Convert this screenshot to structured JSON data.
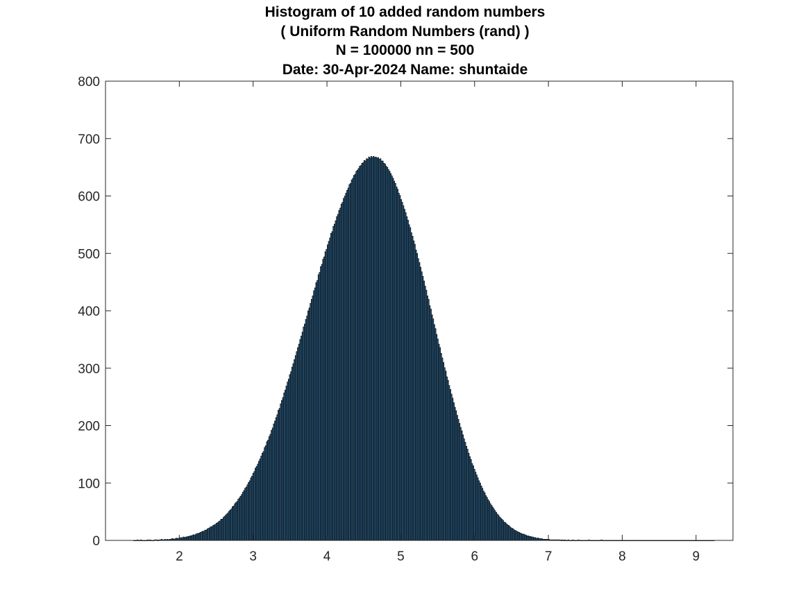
{
  "chart_data": {
    "type": "histogram",
    "title_lines": [
      "Histogram of 10 added random numbers",
      "( Uniform Random Numbers (rand) )",
      "N = 100000 nn = 500",
      "Date: 30-Apr-2024 Name: shuntaide"
    ],
    "xlabel": "",
    "ylabel": "",
    "xlim": [
      1.0,
      9.5
    ],
    "ylim": [
      0,
      800
    ],
    "x_ticks": [
      2,
      3,
      4,
      5,
      6,
      7,
      8,
      9
    ],
    "y_ticks": [
      0,
      100,
      200,
      300,
      400,
      500,
      600,
      700,
      800
    ],
    "grid": false,
    "legend": "none",
    "bar_fill_color": "#2d5c80",
    "bar_edge_color": "#000000",
    "box": true,
    "bins": {
      "count": 500,
      "x_start": 1.38,
      "x_end": 9.14,
      "bin_width": 0.01552,
      "description_of_shape": "approximately normal, mean 5, std 0.913"
    },
    "values": [
      0,
      0,
      0,
      1,
      0,
      0,
      1,
      0,
      0,
      0,
      0,
      0,
      1,
      0,
      1,
      0,
      0,
      0,
      1,
      1,
      1,
      0,
      1,
      1,
      2,
      1,
      1,
      2,
      1,
      2,
      1,
      2,
      2,
      3,
      3,
      2,
      3,
      4,
      3,
      4,
      4,
      5,
      4,
      6,
      5,
      6,
      6,
      7,
      7,
      8,
      8,
      9,
      10,
      9,
      11,
      12,
      12,
      13,
      14,
      15,
      16,
      16,
      18,
      18,
      20,
      21,
      22,
      24,
      24,
      26,
      27,
      28,
      30,
      31,
      33,
      34,
      37,
      37,
      40,
      42,
      44,
      46,
      48,
      51,
      53,
      55,
      59,
      60,
      64,
      66,
      68,
      72,
      74,
      77,
      80,
      84,
      87,
      91,
      93,
      97,
      101,
      104,
      109,
      112,
      117,
      120,
      126,
      129,
      133,
      138,
      142,
      147,
      152,
      155,
      162,
      165,
      172,
      175,
      181,
      185,
      192,
      196,
      203,
      208,
      214,
      219,
      227,
      230,
      238,
      244,
      249,
      257,
      262,
      269,
      276,
      281,
      289,
      294,
      302,
      308,
      315,
      322,
      329,
      336,
      342,
      350,
      356,
      363,
      372,
      377,
      385,
      391,
      400,
      405,
      413,
      420,
      426,
      435,
      440,
      449,
      453,
      463,
      467,
      477,
      481,
      490,
      494,
      503,
      507,
      515,
      521,
      527,
      535,
      538,
      547,
      551,
      557,
      564,
      568,
      575,
      579,
      586,
      589,
      596,
      600,
      605,
      610,
      614,
      620,
      622,
      628,
      631,
      636,
      638,
      643,
      645,
      648,
      652,
      653,
      657,
      658,
      662,
      661,
      665,
      664,
      668,
      666,
      669,
      667,
      669,
      667,
      668,
      666,
      667,
      664,
      665,
      661,
      661,
      657,
      656,
      652,
      650,
      646,
      643,
      639,
      635,
      631,
      626,
      622,
      616,
      612,
      605,
      601,
      594,
      589,
      583,
      577,
      571,
      564,
      558,
      550,
      545,
      536,
      530,
      522,
      516,
      506,
      500,
      491,
      484,
      476,
      468,
      460,
      452,
      443,
      436,
      426,
      420,
      409,
      403,
      393,
      386,
      376,
      369,
      359,
      351,
      342,
      336,
      326,
      318,
      310,
      301,
      295,
      285,
      279,
      270,
      263,
      255,
      248,
      240,
      232,
      226,
      218,
      211,
      204,
      197,
      191,
      184,
      177,
      171,
      164,
      159,
      152,
      146,
      141,
      134,
      130,
      124,
      119,
      114,
      109,
      104,
      100,
      95,
      91,
      86,
      83,
      78,
      75,
      71,
      68,
      64,
      61,
      58,
      55,
      52,
      49,
      46,
      44,
      41,
      39,
      37,
      35,
      32,
      31,
      29,
      27,
      26,
      24,
      22,
      21,
      20,
      18,
      17,
      16,
      15,
      14,
      13,
      12,
      11,
      11,
      10,
      9,
      8,
      8,
      7,
      7,
      6,
      6,
      5,
      5,
      4,
      4,
      4,
      3,
      3,
      3,
      2,
      2,
      2,
      2,
      2,
      2,
      1,
      1,
      1,
      1,
      1,
      1,
      1,
      1,
      1,
      1,
      0,
      1,
      0,
      1,
      0,
      0,
      1,
      0,
      0,
      0,
      1,
      0,
      0,
      0,
      0,
      1,
      0,
      0,
      0,
      0,
      0,
      0,
      0,
      0,
      1,
      0,
      0,
      0,
      0,
      0,
      0,
      0,
      0,
      0,
      0,
      1,
      0,
      0,
      0,
      0,
      0,
      0,
      0,
      0,
      0,
      0,
      0,
      0,
      0,
      0,
      0,
      0,
      0,
      0,
      0,
      0,
      0,
      0,
      0,
      0,
      0,
      0,
      0,
      0,
      0,
      0,
      0,
      0,
      0,
      0,
      0,
      0,
      0,
      0,
      0,
      0,
      0,
      0,
      0,
      0,
      0,
      0,
      0,
      0,
      0,
      0,
      0,
      0,
      0,
      0,
      0,
      0,
      0,
      0,
      0,
      0,
      0,
      0,
      0,
      0,
      0,
      0,
      0,
      0,
      0,
      0,
      0,
      0,
      0,
      0,
      0,
      0,
      0,
      0,
      0,
      0,
      0,
      0,
      0,
      0,
      0,
      0,
      0,
      0,
      0,
      0,
      0,
      0,
      0,
      0,
      0,
      0,
      0,
      0
    ]
  }
}
